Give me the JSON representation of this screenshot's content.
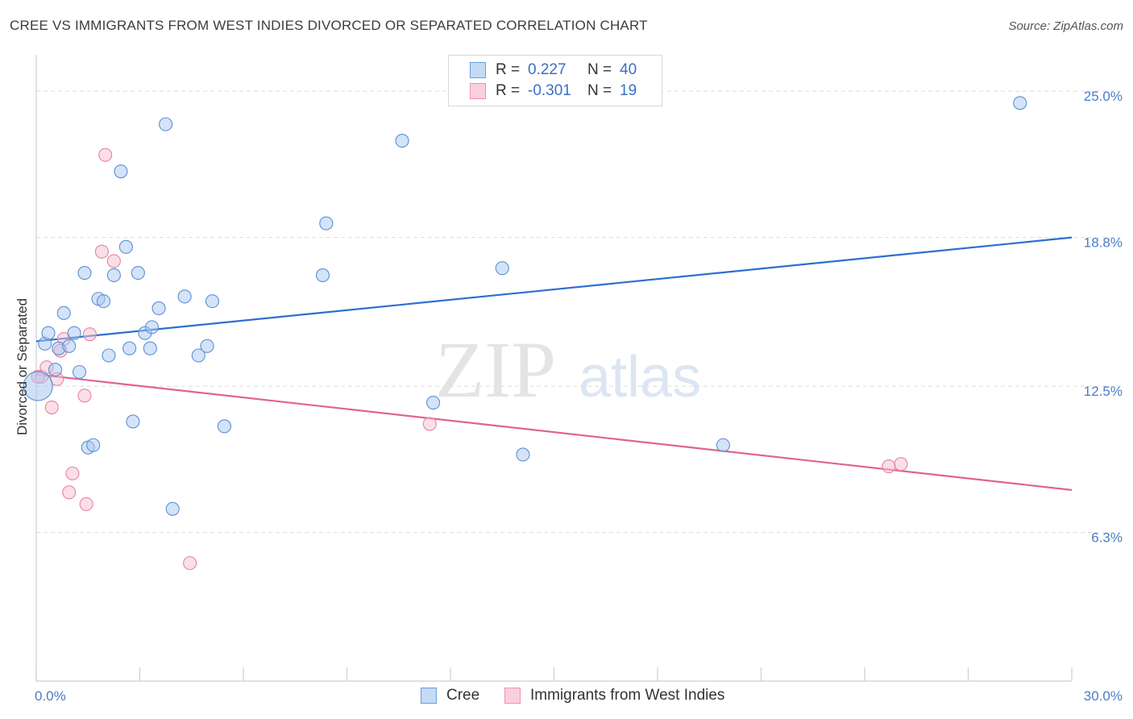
{
  "header": {
    "title": "CREE VS IMMIGRANTS FROM WEST INDIES DIVORCED OR SEPARATED CORRELATION CHART",
    "source": "Source: ZipAtlas.com"
  },
  "watermark": {
    "zip": "ZIP",
    "atlas": "atlas"
  },
  "legend": {
    "rows": [
      {
        "r_label": "R =",
        "r_value": "0.227",
        "n_label": "N =",
        "n_value": "40"
      },
      {
        "r_label": "R =",
        "r_value": "-0.301",
        "n_label": "N =",
        "n_value": "19"
      }
    ]
  },
  "colors": {
    "cree_fill": "#aac8f0",
    "cree_stroke": "#5b8fd6",
    "cree_line": "#2f6ecf",
    "wi_fill": "#f5bfd0",
    "wi_stroke": "#e8829f",
    "wi_line": "#e0648f",
    "grid": "#dcdcdc",
    "axis_text": "#4a7cc9"
  },
  "chart_data": {
    "type": "scatter",
    "title": "CREE VS IMMIGRANTS FROM WEST INDIES DIVORCED OR SEPARATED CORRELATION CHART",
    "xlabel": "",
    "ylabel": "Divorced or Separated",
    "xlim": [
      0,
      30
    ],
    "ylim": [
      0,
      26.2
    ],
    "x_tick_labels": [
      "0.0%",
      "30.0%"
    ],
    "y_ticks": [
      6.3,
      12.5,
      18.8,
      25.0
    ],
    "y_tick_labels": [
      "6.3%",
      "12.5%",
      "18.8%",
      "25.0%"
    ],
    "series": [
      {
        "name": "Cree",
        "r": 0.227,
        "n": 40,
        "trend": {
          "x": [
            0,
            30
          ],
          "y": [
            14.4,
            18.8
          ]
        },
        "points": [
          {
            "x": 0.05,
            "y": 12.5,
            "big": true
          },
          {
            "x": 0.25,
            "y": 14.3
          },
          {
            "x": 0.35,
            "y": 14.75
          },
          {
            "x": 0.55,
            "y": 13.2
          },
          {
            "x": 0.65,
            "y": 14.1
          },
          {
            "x": 0.8,
            "y": 15.6
          },
          {
            "x": 0.95,
            "y": 14.2
          },
          {
            "x": 1.1,
            "y": 14.75
          },
          {
            "x": 1.25,
            "y": 13.1
          },
          {
            "x": 1.4,
            "y": 17.3
          },
          {
            "x": 1.5,
            "y": 9.9
          },
          {
            "x": 1.65,
            "y": 10.0
          },
          {
            "x": 1.8,
            "y": 16.2
          },
          {
            "x": 1.95,
            "y": 16.1
          },
          {
            "x": 2.1,
            "y": 13.8
          },
          {
            "x": 2.25,
            "y": 17.2
          },
          {
            "x": 2.45,
            "y": 21.6
          },
          {
            "x": 2.6,
            "y": 18.4
          },
          {
            "x": 2.7,
            "y": 14.1
          },
          {
            "x": 2.8,
            "y": 11.0
          },
          {
            "x": 2.95,
            "y": 17.3
          },
          {
            "x": 3.15,
            "y": 14.75
          },
          {
            "x": 3.3,
            "y": 14.1
          },
          {
            "x": 3.35,
            "y": 15.0
          },
          {
            "x": 3.55,
            "y": 15.8
          },
          {
            "x": 3.75,
            "y": 23.6
          },
          {
            "x": 3.95,
            "y": 7.3
          },
          {
            "x": 4.3,
            "y": 16.3
          },
          {
            "x": 4.7,
            "y": 13.8
          },
          {
            "x": 4.95,
            "y": 14.2
          },
          {
            "x": 5.1,
            "y": 16.1
          },
          {
            "x": 5.45,
            "y": 10.8
          },
          {
            "x": 8.3,
            "y": 17.2
          },
          {
            "x": 8.4,
            "y": 19.4
          },
          {
            "x": 10.6,
            "y": 22.9
          },
          {
            "x": 11.5,
            "y": 11.8
          },
          {
            "x": 13.5,
            "y": 17.5
          },
          {
            "x": 14.1,
            "y": 9.6
          },
          {
            "x": 19.9,
            "y": 10.0
          },
          {
            "x": 28.5,
            "y": 24.5
          }
        ]
      },
      {
        "name": "Immigrants from West Indies",
        "r": -0.301,
        "n": 19,
        "trend": {
          "x": [
            0,
            30
          ],
          "y": [
            13.0,
            8.1
          ]
        },
        "points": [
          {
            "x": 0.15,
            "y": 12.9
          },
          {
            "x": 0.3,
            "y": 13.3
          },
          {
            "x": 0.45,
            "y": 11.6
          },
          {
            "x": 0.6,
            "y": 12.8
          },
          {
            "x": 0.7,
            "y": 14.0
          },
          {
            "x": 0.8,
            "y": 14.5
          },
          {
            "x": 0.95,
            "y": 8.0
          },
          {
            "x": 1.05,
            "y": 8.8
          },
          {
            "x": 1.4,
            "y": 12.1
          },
          {
            "x": 1.45,
            "y": 7.5
          },
          {
            "x": 1.55,
            "y": 14.7
          },
          {
            "x": 1.9,
            "y": 18.2
          },
          {
            "x": 2.0,
            "y": 22.3
          },
          {
            "x": 2.25,
            "y": 17.8
          },
          {
            "x": 4.45,
            "y": 5.0
          },
          {
            "x": 11.4,
            "y": 10.9
          },
          {
            "x": 24.7,
            "y": 9.1
          },
          {
            "x": 25.05,
            "y": 9.2
          },
          {
            "x": 0.05,
            "y": 12.9
          }
        ]
      }
    ],
    "legend_position": "top-center"
  }
}
